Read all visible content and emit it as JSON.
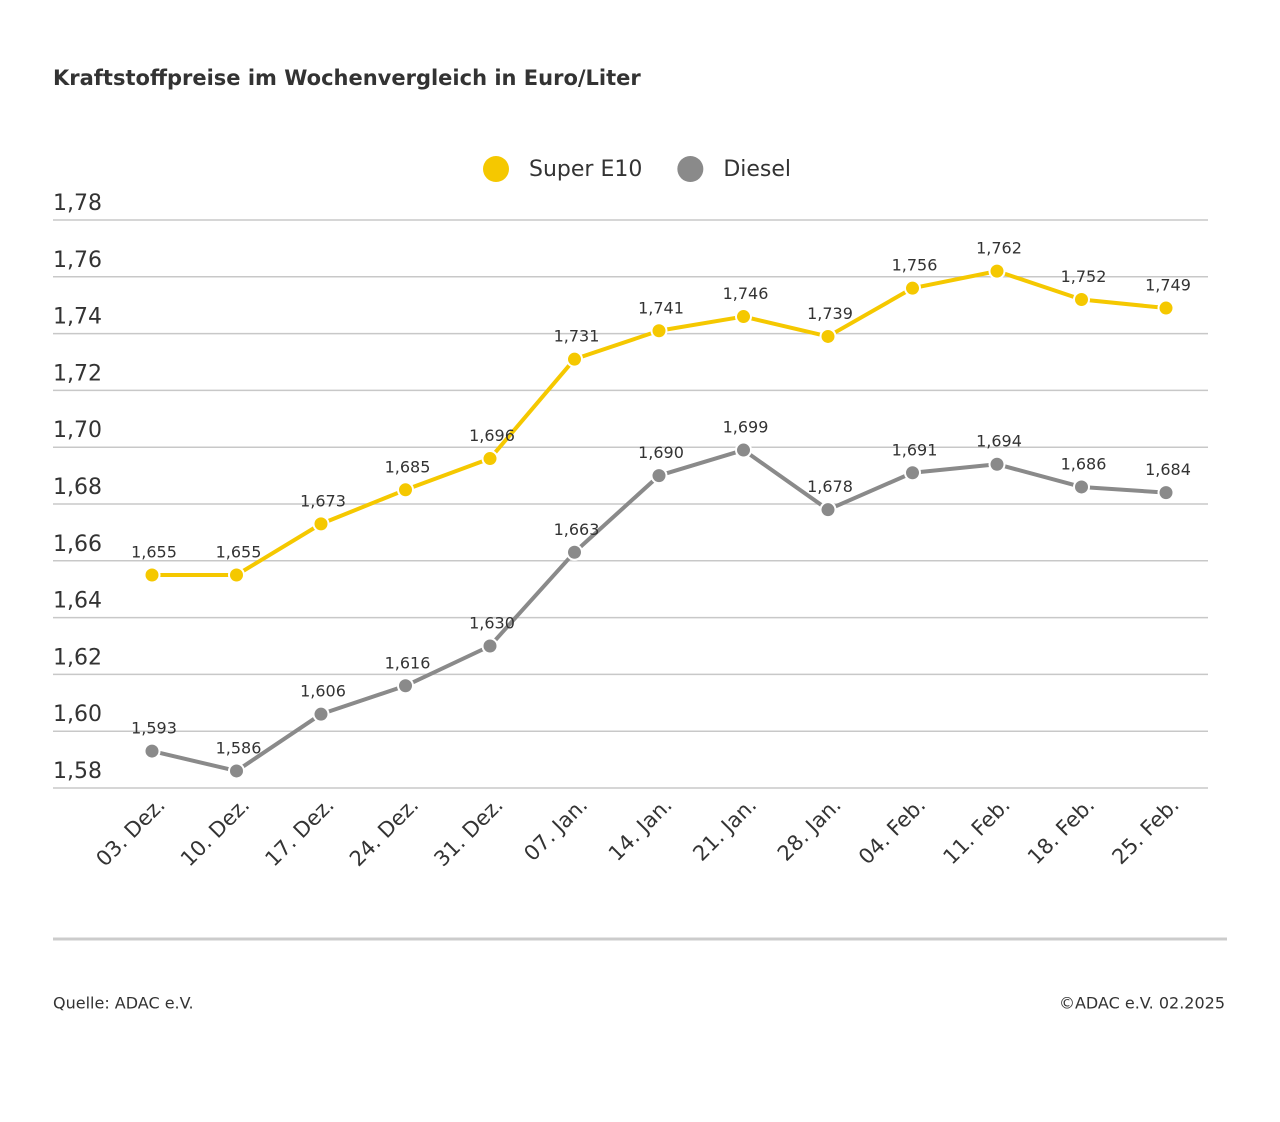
{
  "chart_data": {
    "type": "line",
    "title": "Kraftstoffpreise im Wochenvergleich in Euro/Liter",
    "categories": [
      "03. Dez.",
      "10. Dez.",
      "17. Dez.",
      "24. Dez.",
      "31. Dez.",
      "07. Jan.",
      "14. Jan.",
      "21. Jan.",
      "28. Jan.",
      "04. Feb.",
      "11. Feb.",
      "18. Feb.",
      "25. Feb."
    ],
    "series": [
      {
        "name": "Super E10",
        "color": "#f5c800",
        "values": [
          1.655,
          1.655,
          1.673,
          1.685,
          1.696,
          1.731,
          1.741,
          1.746,
          1.739,
          1.756,
          1.762,
          1.752,
          1.749
        ],
        "value_labels": [
          "1,655",
          "1,655",
          "1,673",
          "1,685",
          "1,696",
          "1,731",
          "1,741",
          "1,746",
          "1,739",
          "1,756",
          "1,762",
          "1,752",
          "1,749"
        ]
      },
      {
        "name": "Diesel",
        "color": "#8a8a8a",
        "values": [
          1.593,
          1.586,
          1.606,
          1.616,
          1.63,
          1.663,
          1.69,
          1.699,
          1.678,
          1.691,
          1.694,
          1.686,
          1.684
        ],
        "value_labels": [
          "1,593",
          "1,586",
          "1,606",
          "1,616",
          "1,630",
          "1,663",
          "1,690",
          "1,699",
          "1,678",
          "1,691",
          "1,694",
          "1,686",
          "1,684"
        ]
      }
    ],
    "ylim": [
      1.58,
      1.78
    ],
    "yticks": [
      {
        "value": 1.58,
        "label": "1,58"
      },
      {
        "value": 1.6,
        "label": "1,60"
      },
      {
        "value": 1.62,
        "label": "1,62"
      },
      {
        "value": 1.64,
        "label": "1,64"
      },
      {
        "value": 1.66,
        "label": "1,66"
      },
      {
        "value": 1.68,
        "label": "1,68"
      },
      {
        "value": 1.7,
        "label": "1,70"
      },
      {
        "value": 1.72,
        "label": "1,72"
      },
      {
        "value": 1.74,
        "label": "1,74"
      },
      {
        "value": 1.76,
        "label": "1,76"
      },
      {
        "value": 1.78,
        "label": "1,78"
      }
    ],
    "grid": true,
    "source": "Quelle: ADAC e.V.",
    "copyright": "©ADAC e.V. 02.2025"
  }
}
